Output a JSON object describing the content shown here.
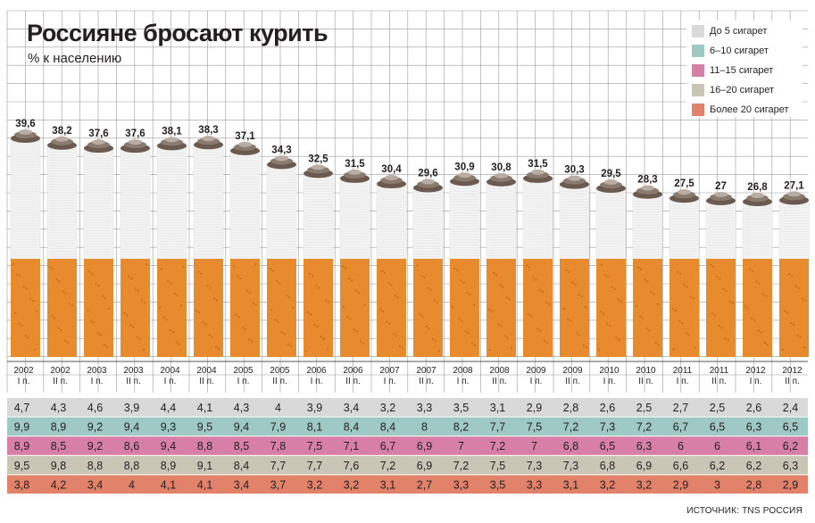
{
  "title": "Россияне бросают курить",
  "subtitle": "% к населению",
  "source": "ИСТОЧНИК: TNS РОССИЯ",
  "colors": {
    "grid_bg": "#ffffff",
    "grid_line": "#9c9a9a",
    "filter": "#e88a2e",
    "paper": "#f3f3f3",
    "ash": "#6b5a4f",
    "row_lt5": "#d9d9d9",
    "row_6_10": "#9ec9c4",
    "row_11_15": "#d77fa6",
    "row_16_20": "#c9c6b6",
    "row_gt20": "#e3826a"
  },
  "legend": [
    {
      "label": "До 5 сигарет",
      "color": "#d9d9d9"
    },
    {
      "label": "6–10 сигарет",
      "color": "#9ec9c4"
    },
    {
      "label": "11–15 сигарет",
      "color": "#d77fa6"
    },
    {
      "label": "16–20 сигарет",
      "color": "#c9c6b6"
    },
    {
      "label": "Более 20 сигарет",
      "color": "#e3826a"
    }
  ],
  "chart_data": {
    "type": "bar",
    "title": "Россияне бросают курить",
    "subtitle": "% к населению",
    "categories": [
      {
        "year": "2002",
        "half": "I п."
      },
      {
        "year": "2002",
        "half": "II п."
      },
      {
        "year": "2003",
        "half": "I п."
      },
      {
        "year": "2003",
        "half": "II п."
      },
      {
        "year": "2004",
        "half": "I п."
      },
      {
        "year": "2004",
        "half": "II п."
      },
      {
        "year": "2005",
        "half": "I п."
      },
      {
        "year": "2005",
        "half": "II п."
      },
      {
        "year": "2006",
        "half": "I п."
      },
      {
        "year": "2006",
        "half": "II п."
      },
      {
        "year": "2007",
        "half": "I п."
      },
      {
        "year": "2007",
        "half": "II п."
      },
      {
        "year": "2008",
        "half": "I п."
      },
      {
        "year": "2008",
        "half": "II п."
      },
      {
        "year": "2009",
        "half": "I п."
      },
      {
        "year": "2009",
        "half": "II п."
      },
      {
        "year": "2010",
        "half": "I п."
      },
      {
        "year": "2010",
        "half": "II п."
      },
      {
        "year": "2011",
        "half": "I п."
      },
      {
        "year": "2011",
        "half": "II п."
      },
      {
        "year": "2012",
        "half": "I п."
      },
      {
        "year": "2012",
        "half": "II п."
      }
    ],
    "values": [
      "39,6",
      "38,2",
      "37,6",
      "37,6",
      "38,1",
      "38,3",
      "37,1",
      "34,3",
      "32,5",
      "31,5",
      "30,4",
      "29,6",
      "30,9",
      "30,8",
      "31,5",
      "30,3",
      "29,5",
      "28,3",
      "27,5",
      "27",
      "26,8",
      "27,1"
    ],
    "breakdown": [
      {
        "name": "До 5 сигарет",
        "values": [
          "4,7",
          "4,3",
          "4,6",
          "3,9",
          "4,4",
          "4,1",
          "4,3",
          "4",
          "3,9",
          "3,4",
          "3,2",
          "3,3",
          "3,5",
          "3,1",
          "2,9",
          "2,8",
          "2,6",
          "2,5",
          "2,7",
          "2,5",
          "2,6",
          "2,4"
        ]
      },
      {
        "name": "6–10 сигарет",
        "values": [
          "9,9",
          "8,9",
          "9,2",
          "9,4",
          "9,3",
          "9,5",
          "9,4",
          "7,9",
          "8,1",
          "8,4",
          "8,4",
          "8",
          "8,2",
          "7,7",
          "7,5",
          "7,2",
          "7,3",
          "7,2",
          "6,7",
          "6,5",
          "6,3",
          "6,5"
        ]
      },
      {
        "name": "11–15 сигарет",
        "values": [
          "8,9",
          "8,5",
          "9,2",
          "8,6",
          "9,4",
          "8,8",
          "8,5",
          "7,8",
          "7,5",
          "7,1",
          "6,7",
          "6,9",
          "7",
          "7,2",
          "7",
          "6,8",
          "6,5",
          "6,3",
          "6",
          "6",
          "6,1",
          "6,2"
        ]
      },
      {
        "name": "16–20 сигарет",
        "values": [
          "9,5",
          "9,8",
          "8,8",
          "8,8",
          "8,9",
          "9,1",
          "8,4",
          "7,7",
          "7,7",
          "7,6",
          "7,2",
          "6,9",
          "7,2",
          "7,5",
          "7,3",
          "7,3",
          "6,8",
          "6,9",
          "6,6",
          "6,2",
          "6,2",
          "6,3"
        ]
      },
      {
        "name": "Более 20 сигарет",
        "values": [
          "3,8",
          "4,2",
          "3,4",
          "4",
          "4,1",
          "4,1",
          "3,4",
          "3,7",
          "3,2",
          "3,2",
          "3,1",
          "2,7",
          "3,3",
          "3,5",
          "3,3",
          "3,1",
          "3,2",
          "3,2",
          "2,9",
          "3",
          "2,8",
          "2,9"
        ]
      }
    ],
    "xlabel": "",
    "ylabel": ""
  }
}
